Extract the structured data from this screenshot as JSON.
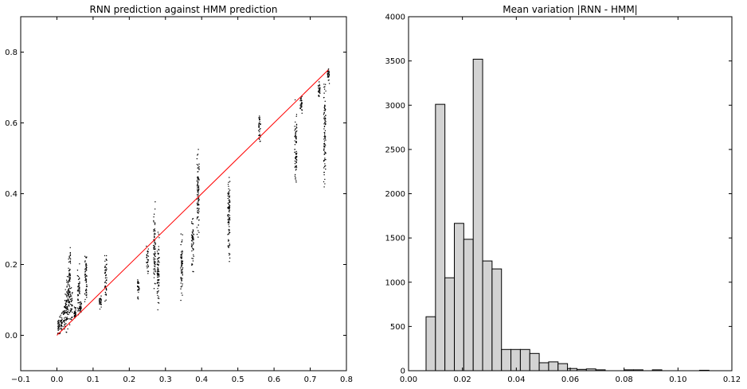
{
  "chart_data": [
    {
      "type": "scatter",
      "title": "RNN prediction against HMM prediction",
      "xlabel": "",
      "ylabel": "",
      "xlim": [
        -0.1,
        0.8
      ],
      "ylim": [
        -0.1,
        0.9
      ],
      "xticks": [
        -0.1,
        0.0,
        0.1,
        0.2,
        0.3,
        0.4,
        0.5,
        0.6,
        0.7,
        0.8
      ],
      "xtick_labels": [
        "−0.1",
        "0.0",
        "0.1",
        "0.2",
        "0.3",
        "0.4",
        "0.5",
        "0.6",
        "0.7",
        "0.8"
      ],
      "yticks": [
        0.0,
        0.2,
        0.4,
        0.6,
        0.8
      ],
      "ytick_labels": [
        "0.0",
        "0.2",
        "0.4",
        "0.6",
        "0.8"
      ],
      "grid": false,
      "point_color": "#000000",
      "line_color": "#ff0000",
      "reference_line": {
        "x": [
          0.0,
          0.75
        ],
        "y": [
          0.0,
          0.75
        ]
      },
      "clusters": [
        {
          "x": 0.005,
          "ymin": -0.01,
          "ymax": 0.06
        },
        {
          "x": 0.012,
          "ymin": 0.0,
          "ymax": 0.07
        },
        {
          "x": 0.02,
          "ymin": 0.0,
          "ymax": 0.1
        },
        {
          "x": 0.025,
          "ymin": 0.0,
          "ymax": 0.14
        },
        {
          "x": 0.03,
          "ymin": 0.0,
          "ymax": 0.2
        },
        {
          "x": 0.035,
          "ymin": 0.01,
          "ymax": 0.29
        },
        {
          "x": 0.04,
          "ymin": 0.02,
          "ymax": 0.15
        },
        {
          "x": 0.05,
          "ymin": 0.03,
          "ymax": 0.09
        },
        {
          "x": 0.06,
          "ymin": 0.04,
          "ymax": 0.22
        },
        {
          "x": 0.065,
          "ymin": 0.05,
          "ymax": 0.11
        },
        {
          "x": 0.08,
          "ymin": 0.04,
          "ymax": 0.27
        },
        {
          "x": 0.12,
          "ymin": 0.07,
          "ymax": 0.12
        },
        {
          "x": 0.135,
          "ymin": 0.07,
          "ymax": 0.26
        },
        {
          "x": 0.225,
          "ymin": 0.09,
          "ymax": 0.19
        },
        {
          "x": 0.25,
          "ymin": 0.15,
          "ymax": 0.27
        },
        {
          "x": 0.27,
          "ymin": 0.09,
          "ymax": 0.39
        },
        {
          "x": 0.28,
          "ymin": 0.04,
          "ymax": 0.32
        },
        {
          "x": 0.345,
          "ymin": 0.07,
          "ymax": 0.33
        },
        {
          "x": 0.375,
          "ymin": 0.15,
          "ymax": 0.36
        },
        {
          "x": 0.39,
          "ymin": 0.22,
          "ymax": 0.58
        },
        {
          "x": 0.475,
          "ymin": 0.17,
          "ymax": 0.52
        },
        {
          "x": 0.56,
          "ymin": 0.51,
          "ymax": 0.65
        },
        {
          "x": 0.66,
          "ymin": 0.38,
          "ymax": 0.68
        },
        {
          "x": 0.675,
          "ymin": 0.62,
          "ymax": 0.69
        },
        {
          "x": 0.725,
          "ymin": 0.66,
          "ymax": 0.73
        },
        {
          "x": 0.74,
          "ymin": 0.37,
          "ymax": 0.75
        },
        {
          "x": 0.75,
          "ymin": 0.7,
          "ymax": 0.77
        }
      ]
    },
    {
      "type": "bar",
      "title": "Mean variation |RNN - HMM|",
      "xlabel": "",
      "ylabel": "",
      "xlim": [
        0.0,
        0.12
      ],
      "ylim": [
        0,
        4000
      ],
      "xticks": [
        0.0,
        0.02,
        0.04,
        0.06,
        0.08,
        0.1,
        0.12
      ],
      "xtick_labels": [
        "0.00",
        "0.02",
        "0.04",
        "0.06",
        "0.08",
        "0.10",
        "0.12"
      ],
      "yticks": [
        0,
        500,
        1000,
        1500,
        2000,
        2500,
        3000,
        3500,
        4000
      ],
      "ytick_labels": [
        "0",
        "500",
        "1000",
        "1500",
        "2000",
        "2500",
        "3000",
        "3500",
        "4000"
      ],
      "grid": false,
      "bar_color": "#d3d3d3",
      "edge_color": "#000000",
      "bin_edges": [
        0.0065,
        0.01,
        0.0135,
        0.017,
        0.0205,
        0.024,
        0.0275,
        0.031,
        0.0345,
        0.038,
        0.0415,
        0.045,
        0.0485,
        0.052,
        0.0555,
        0.059,
        0.0625,
        0.066,
        0.0695,
        0.073,
        0.0765,
        0.08,
        0.0835,
        0.087,
        0.0905,
        0.094,
        0.0975,
        0.101,
        0.1045,
        0.108,
        0.1115
      ],
      "values": [
        610,
        3010,
        1050,
        1665,
        1485,
        3520,
        1240,
        1150,
        240,
        240,
        240,
        195,
        90,
        100,
        80,
        25,
        15,
        20,
        10,
        0,
        0,
        10,
        10,
        0,
        10,
        0,
        0,
        0,
        0,
        5
      ]
    }
  ]
}
